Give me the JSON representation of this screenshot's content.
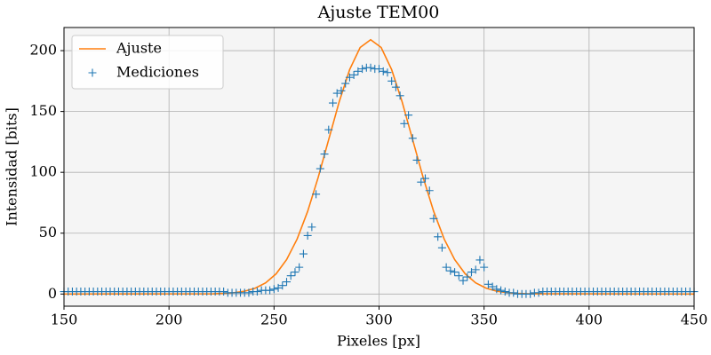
{
  "chart_data": {
    "type": "line-scatter",
    "title": "Ajuste TEM00",
    "x_label": "Pixeles [px]",
    "y_label": "Intensidad [bits]",
    "xlim": [
      150,
      450
    ],
    "ylim": [
      -10,
      219
    ],
    "xticks": [
      150,
      200,
      250,
      300,
      350,
      400,
      450
    ],
    "yticks": [
      0,
      50,
      100,
      150,
      200
    ],
    "grid": true,
    "legend": "upper-left",
    "series": [
      {
        "name": "Ajuste",
        "type": "line",
        "color": "#ff7f0e",
        "x": [
          150,
          221,
          226,
          231,
          236,
          241,
          246,
          251,
          256,
          261,
          266,
          271,
          276,
          281,
          286,
          291,
          296,
          301,
          306,
          311,
          316,
          321,
          326,
          331,
          336,
          341,
          346,
          351,
          356,
          361,
          366,
          371,
          450
        ],
        "values": [
          0,
          0.2,
          0.5,
          1.1,
          2.3,
          4.8,
          9.2,
          16.6,
          28.3,
          45.2,
          67.9,
          95.7,
          126.8,
          157.8,
          184.4,
          202.6,
          209,
          202.6,
          184.4,
          157.8,
          126.8,
          95.7,
          67.9,
          45.2,
          28.3,
          16.6,
          9.2,
          4.8,
          2.3,
          1.1,
          0.5,
          0.2,
          0
        ]
      },
      {
        "name": "Mediciones",
        "type": "scatter",
        "marker": "+",
        "color": "#1f77b4",
        "x": [
          150,
          152,
          154,
          156,
          158,
          160,
          162,
          164,
          166,
          168,
          170,
          172,
          174,
          176,
          178,
          180,
          182,
          184,
          186,
          188,
          190,
          192,
          194,
          196,
          198,
          200,
          202,
          204,
          206,
          208,
          210,
          212,
          214,
          216,
          218,
          220,
          222,
          224,
          226,
          228,
          230,
          232,
          234,
          236,
          238,
          240,
          242,
          244,
          246,
          248,
          250,
          252,
          254,
          256,
          258,
          260,
          262,
          264,
          266,
          268,
          270,
          272,
          274,
          276,
          278,
          280,
          282,
          284,
          286,
          288,
          290,
          292,
          294,
          296,
          298,
          300,
          302,
          304,
          306,
          308,
          310,
          312,
          314,
          316,
          318,
          320,
          322,
          324,
          326,
          328,
          330,
          332,
          334,
          336,
          338,
          340,
          342,
          344,
          346,
          348,
          350,
          352,
          354,
          356,
          358,
          360,
          362,
          364,
          366,
          368,
          370,
          372,
          374,
          376,
          378,
          380,
          382,
          384,
          386,
          388,
          390,
          392,
          394,
          396,
          398,
          400,
          402,
          404,
          406,
          408,
          410,
          412,
          414,
          416,
          418,
          420,
          422,
          424,
          426,
          428,
          430,
          432,
          434,
          436,
          438,
          440,
          442,
          444,
          446,
          448,
          450
        ],
        "values": [
          2,
          2,
          2,
          2,
          2,
          2,
          2,
          2,
          2,
          2,
          2,
          2,
          2,
          2,
          2,
          2,
          2,
          2,
          2,
          2,
          2,
          2,
          2,
          2,
          2,
          2,
          2,
          2,
          2,
          2,
          2,
          2,
          2,
          2,
          2,
          2,
          2,
          2,
          2,
          1,
          1,
          1,
          1,
          1,
          1,
          2,
          2,
          3,
          3,
          3,
          4,
          5,
          7,
          10,
          15,
          18,
          22,
          33,
          48,
          55,
          82,
          103,
          115,
          135,
          157,
          165,
          167,
          173,
          178,
          180,
          183,
          185,
          186,
          186,
          185,
          185,
          183,
          182,
          175,
          170,
          163,
          140,
          147,
          128,
          110,
          92,
          95,
          85,
          62,
          47,
          38,
          22,
          19,
          18,
          15,
          11,
          14,
          18,
          20,
          28,
          22,
          8,
          6,
          4,
          3,
          2,
          1,
          1,
          0,
          0,
          0,
          0,
          1,
          1,
          2,
          2,
          2,
          2,
          2,
          2,
          2,
          2,
          2,
          2,
          2,
          2,
          2,
          2,
          2,
          2,
          2,
          2,
          2,
          2,
          2,
          2,
          2,
          2,
          2,
          2,
          2,
          2,
          2,
          2,
          2,
          2,
          2,
          2,
          2,
          2,
          2
        ]
      }
    ]
  }
}
